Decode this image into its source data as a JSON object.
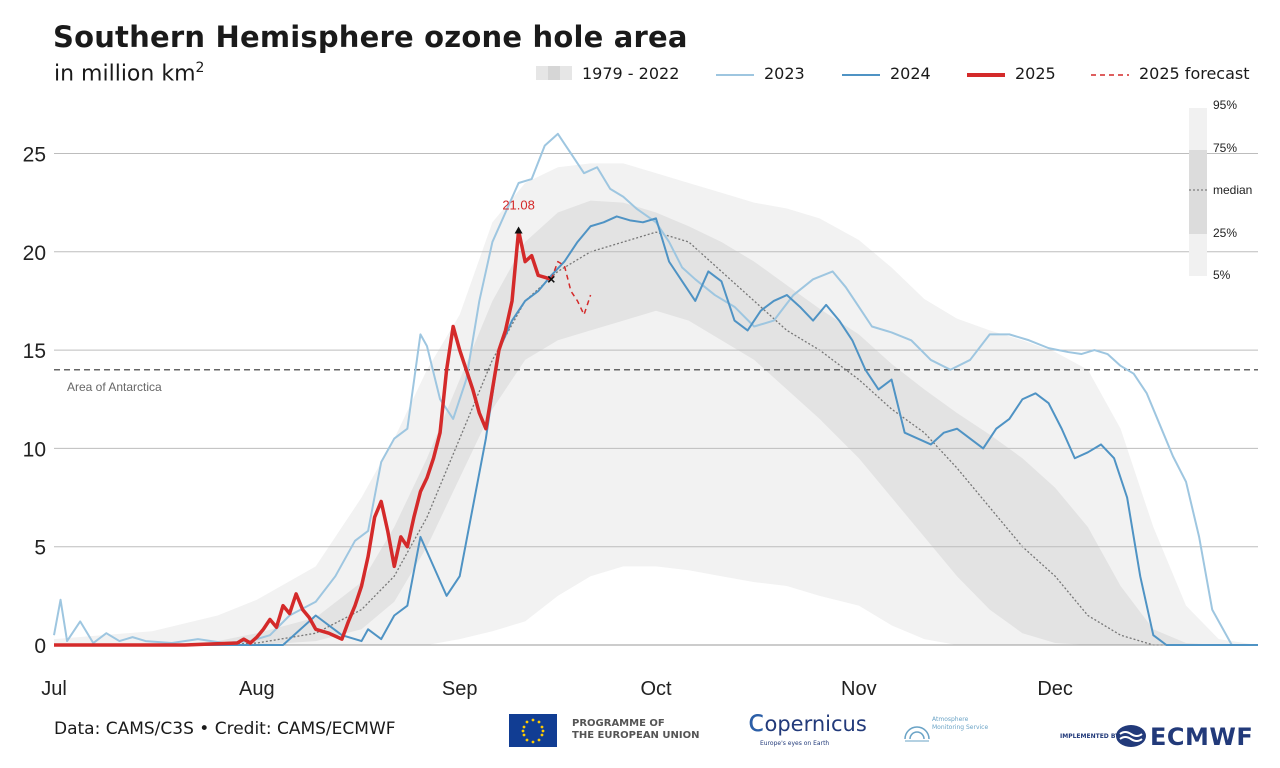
{
  "header": {
    "title": "Southern Hemisphere ozone hole area",
    "subtitle_text": "in million km",
    "subtitle_sup": "2"
  },
  "legend": {
    "climatology": "1979 - 2022",
    "y2023": "2023",
    "y2024": "2024",
    "y2025": "2025",
    "forecast": "2025 forecast"
  },
  "percentile_key": [
    "95%",
    "75%",
    "median",
    "25%",
    "5%"
  ],
  "annotations": {
    "antarctica_label": "Area of Antarctica",
    "peak_label": "21.08"
  },
  "footer": {
    "credit": "Data: CAMS/C3S • Credit: CAMS/ECMWF",
    "eu_line1": "PROGRAMME OF",
    "eu_line2": "THE EUROPEAN UNION",
    "copernicus": "opernicus",
    "copernicus_sub": "Europe's eyes on Earth",
    "atmo_line1": "Atmosphere",
    "atmo_line2": "Monitoring Service",
    "implemented_by": "IMPLEMENTED BY",
    "ecmwf": "ECMWF"
  },
  "colors": {
    "y2023": "#9ec6e0",
    "y2024": "#4f93c4",
    "y2025": "#d42a2a",
    "forecast": "#d42a2a",
    "band_5_95": "#f2f2f2",
    "band_25_75": "#e3e3e3",
    "median": "#777777",
    "antarctica": "#666666",
    "grid": "#bdbdbd"
  },
  "chart_data": {
    "type": "line",
    "title": "Southern Hemisphere ozone hole area",
    "ylabel": "in million km2",
    "xlim": [
      0,
      184
    ],
    "ylim": [
      0,
      26.5
    ],
    "yticks": [
      0,
      5,
      10,
      15,
      20,
      25
    ],
    "xticks": [
      {
        "x": 0,
        "label": "Jul"
      },
      {
        "x": 31,
        "label": "Aug"
      },
      {
        "x": 62,
        "label": "Sep"
      },
      {
        "x": 92,
        "label": "Oct"
      },
      {
        "x": 123,
        "label": "Nov"
      },
      {
        "x": 153,
        "label": "Dec"
      }
    ],
    "reference_line": {
      "y": 14,
      "label": "Area of Antarctica"
    },
    "peak": {
      "x": 71,
      "y": 21.08,
      "label": "21.08"
    },
    "climatology": {
      "name": "1979 - 2022",
      "x": [
        0,
        15,
        25,
        31,
        40,
        47,
        52,
        57,
        62,
        67,
        72,
        77,
        82,
        87,
        92,
        97,
        102,
        107,
        112,
        117,
        123,
        128,
        133,
        138,
        143,
        148,
        153,
        158,
        163,
        168,
        173,
        178,
        184
      ],
      "p95": [
        0.3,
        0.7,
        1.5,
        2.3,
        4.0,
        7.5,
        10.5,
        14.0,
        16.8,
        21.5,
        23.5,
        24.3,
        24.5,
        24.5,
        24.0,
        23.5,
        23.0,
        22.5,
        22.2,
        21.7,
        20.6,
        19.2,
        17.6,
        16.6,
        16.0,
        15.5,
        14.9,
        14.0,
        11.0,
        6.0,
        2.0,
        0.3,
        0.0
      ],
      "p75": [
        0.0,
        0.0,
        0.2,
        0.6,
        1.4,
        3.2,
        6.0,
        9.5,
        13.5,
        17.5,
        20.5,
        22.0,
        22.6,
        22.5,
        22.0,
        21.3,
        20.5,
        19.5,
        18.3,
        17.1,
        15.8,
        14.3,
        13.0,
        11.8,
        10.7,
        9.5,
        8.0,
        6.0,
        3.0,
        0.8,
        0.1,
        0.0,
        0.0
      ],
      "p50": [
        0.0,
        0.0,
        0.0,
        0.1,
        0.6,
        1.8,
        3.5,
        6.5,
        10.5,
        14.5,
        17.5,
        19.0,
        20.0,
        20.5,
        21.0,
        20.5,
        19.0,
        17.5,
        16.0,
        15.0,
        13.5,
        12.0,
        10.8,
        9.0,
        7.0,
        5.0,
        3.5,
        1.5,
        0.5,
        0.0,
        0.0,
        0.0,
        0.0
      ],
      "p25": [
        0.0,
        0.0,
        0.0,
        0.0,
        0.2,
        0.8,
        2.2,
        5.0,
        8.5,
        12.0,
        14.5,
        15.5,
        16.0,
        16.5,
        17.0,
        16.5,
        15.5,
        14.5,
        13.0,
        11.5,
        9.5,
        7.5,
        5.5,
        3.5,
        1.8,
        0.6,
        0.1,
        0.0,
        0.0,
        0.0,
        0.0,
        0.0,
        0.0
      ],
      "p5": [
        0.0,
        0.0,
        0.0,
        0.0,
        0.0,
        0.0,
        0.0,
        0.0,
        0.3,
        0.7,
        1.2,
        2.5,
        3.5,
        4.0,
        4.0,
        3.8,
        3.5,
        3.2,
        3.0,
        2.5,
        2.0,
        1.0,
        0.3,
        0.0,
        0.0,
        0.0,
        0.0,
        0.0,
        0.0,
        0.0,
        0.0,
        0.0,
        0.0
      ]
    },
    "series": [
      {
        "name": "2023",
        "x": [
          0,
          1,
          2,
          4,
          6,
          8,
          10,
          12,
          14,
          18,
          22,
          26,
          30,
          33,
          36,
          40,
          43,
          46,
          48,
          50,
          52,
          54,
          56,
          57,
          59,
          61,
          63,
          65,
          67,
          69,
          71,
          73,
          75,
          77,
          78,
          79,
          81,
          83,
          85,
          87,
          89,
          92,
          94,
          96,
          98,
          101,
          104,
          107,
          110,
          113,
          116,
          119,
          121,
          123,
          125,
          128,
          131,
          134,
          137,
          140,
          143,
          146,
          149,
          152,
          155,
          157,
          159,
          161,
          163,
          165,
          167,
          169,
          171,
          173,
          175,
          177,
          180,
          184
        ],
        "y": [
          0.5,
          2.3,
          0.2,
          1.2,
          0.1,
          0.6,
          0.2,
          0.4,
          0.2,
          0.1,
          0.3,
          0.1,
          0.2,
          0.5,
          1.5,
          2.2,
          3.5,
          5.3,
          5.8,
          9.3,
          10.5,
          11.0,
          15.8,
          15.2,
          12.5,
          11.5,
          13.5,
          17.5,
          20.5,
          22.0,
          23.5,
          23.7,
          25.4,
          26.0,
          25.5,
          25.0,
          24.0,
          24.3,
          23.2,
          22.8,
          22.2,
          21.5,
          20.5,
          19.2,
          18.6,
          17.8,
          17.2,
          16.2,
          16.5,
          17.8,
          18.6,
          19.0,
          18.2,
          17.2,
          16.2,
          15.9,
          15.5,
          14.5,
          14.0,
          14.5,
          15.8,
          15.8,
          15.5,
          15.1,
          14.9,
          14.8,
          15.0,
          14.8,
          14.2,
          13.8,
          12.8,
          11.2,
          9.6,
          8.3,
          5.5,
          1.8,
          0.0,
          0.0
        ]
      },
      {
        "name": "2024",
        "x": [
          0,
          10,
          25,
          35,
          40,
          44,
          47,
          48,
          50,
          52,
          54,
          56,
          58,
          60,
          62,
          64,
          66,
          68,
          70,
          72,
          74,
          76,
          78,
          80,
          82,
          84,
          86,
          88,
          90,
          92,
          94,
          96,
          98,
          100,
          102,
          104,
          106,
          108,
          110,
          112,
          114,
          116,
          118,
          120,
          122,
          124,
          126,
          128,
          130,
          132,
          134,
          136,
          138,
          140,
          142,
          144,
          146,
          148,
          150,
          152,
          154,
          156,
          158,
          160,
          162,
          164,
          166,
          168,
          170,
          172,
          174,
          176,
          178,
          180,
          184
        ],
        "y": [
          0.0,
          0.0,
          0.0,
          0.0,
          1.5,
          0.5,
          0.2,
          0.8,
          0.3,
          1.5,
          2.0,
          5.5,
          4.0,
          2.5,
          3.5,
          7.0,
          10.5,
          15.0,
          16.5,
          17.5,
          18.0,
          18.8,
          19.5,
          20.5,
          21.3,
          21.5,
          21.8,
          21.6,
          21.5,
          21.7,
          19.5,
          18.5,
          17.5,
          19.0,
          18.5,
          16.5,
          16.0,
          17.0,
          17.5,
          17.8,
          17.2,
          16.5,
          17.3,
          16.5,
          15.5,
          14.0,
          13.0,
          13.5,
          10.8,
          10.5,
          10.2,
          10.8,
          11.0,
          10.5,
          10.0,
          11.0,
          11.5,
          12.5,
          12.8,
          12.3,
          11.0,
          9.5,
          9.8,
          10.2,
          9.5,
          7.5,
          3.5,
          0.5,
          0.0,
          0.0,
          0.0,
          0.0,
          0.0,
          0.0,
          0.0
        ]
      },
      {
        "name": "2025",
        "x": [
          0,
          20,
          28,
          29,
          30,
          31,
          32,
          33,
          34,
          35,
          36,
          37,
          38,
          39,
          40,
          42,
          44,
          45,
          46,
          47,
          48,
          49,
          50,
          51,
          52,
          53,
          54,
          55,
          56,
          57,
          58,
          59,
          60,
          61,
          62,
          63,
          64,
          65,
          66,
          67,
          68,
          69,
          70,
          71,
          72,
          73,
          74,
          75,
          76
        ],
        "y": [
          0.0,
          0.0,
          0.1,
          0.3,
          0.1,
          0.4,
          0.8,
          1.3,
          0.9,
          2.0,
          1.6,
          2.6,
          1.8,
          1.4,
          0.8,
          0.6,
          0.3,
          1.2,
          2.0,
          3.0,
          4.5,
          6.5,
          7.3,
          5.8,
          4.0,
          5.5,
          5.0,
          6.5,
          7.8,
          8.5,
          9.5,
          10.8,
          14.0,
          16.2,
          15.0,
          14.0,
          13.0,
          11.8,
          11.0,
          13.0,
          15.0,
          16.0,
          17.5,
          21.08,
          19.5,
          19.8,
          18.8,
          18.7,
          18.6
        ]
      },
      {
        "name": "2025 forecast",
        "x": [
          76,
          77,
          78,
          79,
          80,
          81,
          82
        ],
        "y": [
          18.6,
          19.5,
          19.3,
          18.0,
          17.5,
          16.8,
          17.8
        ]
      }
    ]
  }
}
